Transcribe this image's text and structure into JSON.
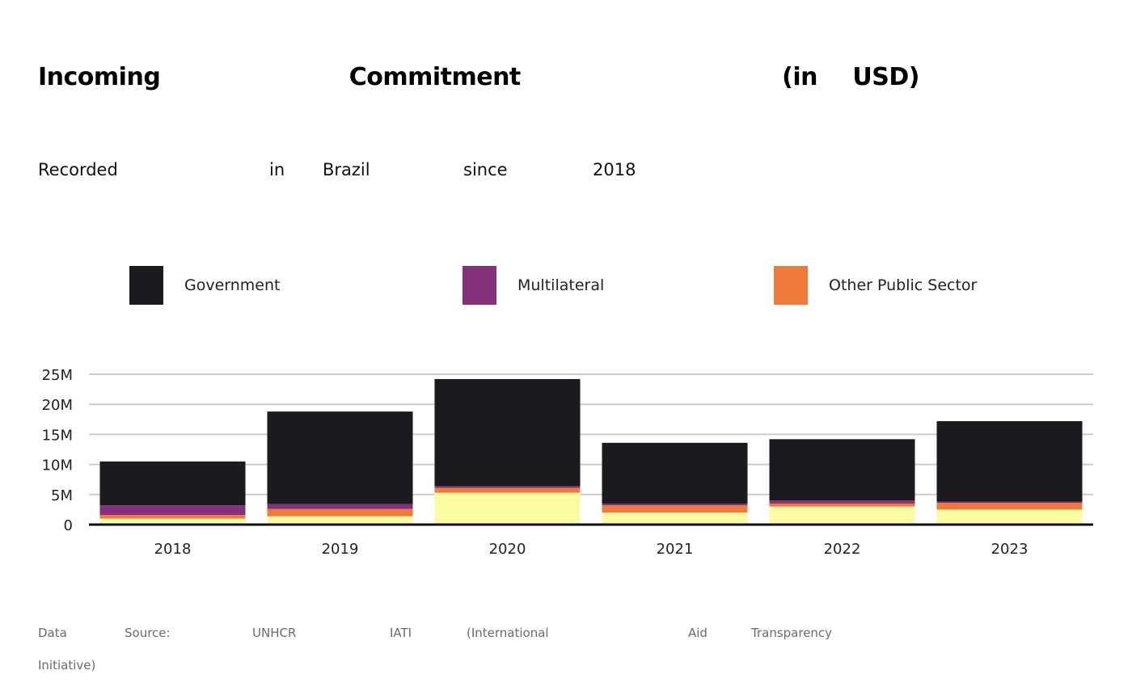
{
  "title": {
    "words": [
      "Incoming",
      "Commitment",
      "(in",
      "USD)"
    ]
  },
  "subtitle": {
    "words": [
      "Recorded",
      "in",
      "Brazil",
      "since",
      "2018"
    ]
  },
  "legend": [
    {
      "label": "Government",
      "color": "#1a1a1f"
    },
    {
      "label": "Multilateral",
      "color": "#84307a"
    },
    {
      "label": "Other Public Sector",
      "color": "#f07a3a"
    }
  ],
  "source": {
    "words": [
      "Data",
      "Source:",
      "UNHCR",
      "IATI",
      "(International",
      "Aid",
      "Transparency",
      "Initiative)"
    ]
  },
  "chart_data": {
    "type": "bar",
    "stacked": true,
    "categories": [
      "2018",
      "2019",
      "2020",
      "2021",
      "2022",
      "2023"
    ],
    "series": [
      {
        "name": "",
        "color": "#fbfba3",
        "values": [
          1.0,
          1.4,
          5.3,
          2.0,
          3.0,
          2.5
        ]
      },
      {
        "name": "Other Public Sector",
        "color": "#f07a3a",
        "values": [
          0.6,
          1.2,
          0.8,
          1.2,
          0.5,
          1.1
        ]
      },
      {
        "name": "Multilateral",
        "color": "#84307a",
        "values": [
          1.6,
          0.8,
          0.3,
          0.3,
          0.5,
          0.2
        ]
      },
      {
        "name": "Government",
        "color": "#1a1a1f",
        "values": [
          7.3,
          15.4,
          17.8,
          10.1,
          10.2,
          13.4
        ]
      }
    ],
    "yticks": [
      "0",
      "5M",
      "10M",
      "15M",
      "20M",
      "25M"
    ],
    "ylim": [
      0,
      25
    ],
    "grid": true,
    "legend_position": "top",
    "xlabel": "",
    "ylabel": ""
  }
}
